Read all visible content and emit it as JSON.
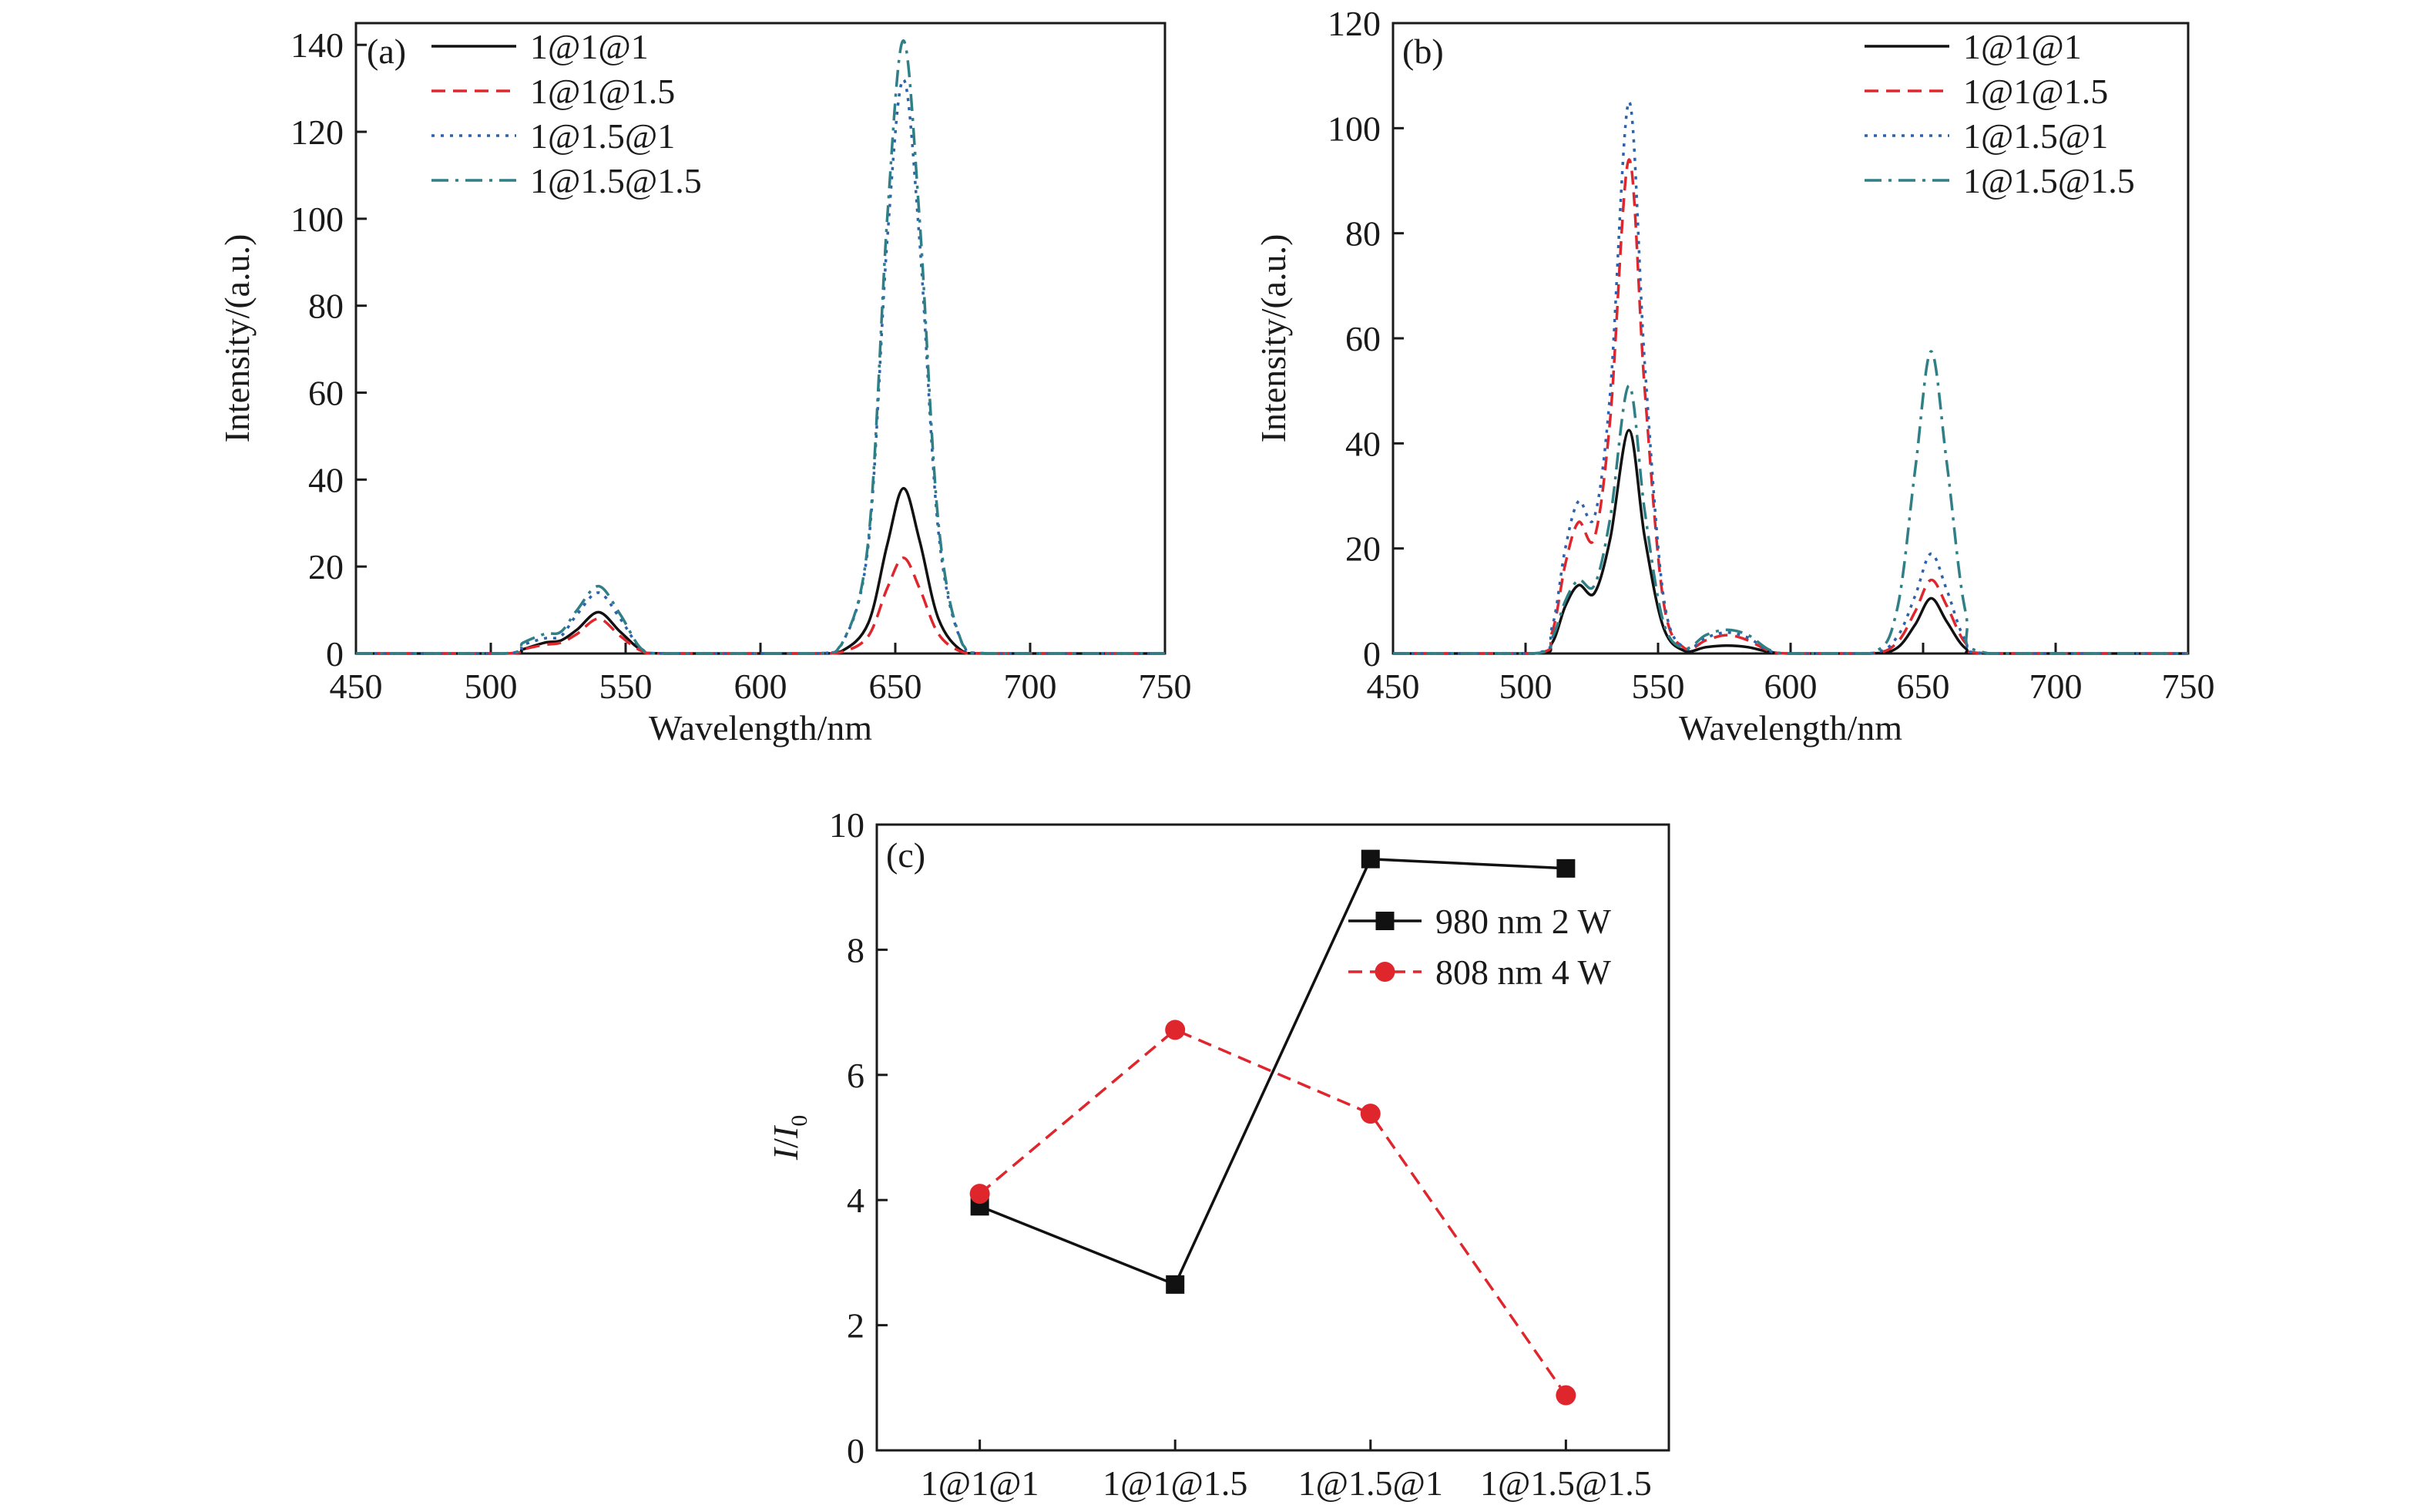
{
  "colors": {
    "series_black": "#111111",
    "series_red": "#e0262d",
    "series_blue": "#2a62ad",
    "series_teal": "#2f7f86"
  },
  "chart_data": [
    {
      "panel": "(a)",
      "type": "line",
      "xlabel": "Wavelength/nm",
      "ylabel": "Intensity/(a.u.)",
      "xlim": [
        450,
        750
      ],
      "ylim": [
        0,
        145
      ],
      "xticks": [
        450,
        500,
        550,
        600,
        650,
        700,
        750
      ],
      "yticks": [
        0,
        20,
        40,
        60,
        80,
        100,
        120,
        140
      ],
      "grid": false,
      "legend_position": "top-left",
      "series": [
        {
          "name": "1@1@1",
          "color": "#111111",
          "dash": "solid",
          "x": [
            450,
            505,
            512,
            520,
            526,
            532,
            540,
            548,
            556,
            565,
            620,
            630,
            640,
            647,
            653,
            659,
            666,
            675,
            685,
            750
          ],
          "y": [
            0,
            0,
            1,
            2.5,
            3,
            5.5,
            9.5,
            5,
            0.8,
            0,
            0,
            0.5,
            7,
            25,
            38,
            26,
            8,
            0.5,
            0,
            0
          ]
        },
        {
          "name": "1@1@1.5",
          "color": "#e0262d",
          "dash": "dashed",
          "x": [
            450,
            505,
            512,
            520,
            526,
            532,
            540,
            548,
            556,
            565,
            620,
            630,
            640,
            647,
            653,
            659,
            666,
            675,
            685,
            750
          ],
          "y": [
            0,
            0,
            1,
            2,
            2.5,
            4.5,
            8,
            4,
            0.6,
            0,
            0,
            0.3,
            4,
            15,
            22,
            15,
            4.5,
            0.3,
            0,
            0
          ]
        },
        {
          "name": "1@1.5@1",
          "color": "#2a62ad",
          "dash": "dotted",
          "x": [
            450,
            505,
            512,
            520,
            526,
            532,
            540,
            548,
            556,
            565,
            620,
            630,
            640,
            647,
            653,
            659,
            666,
            675,
            685,
            750
          ],
          "y": [
            0,
            0,
            2,
            3.5,
            4,
            9,
            14,
            8,
            1,
            0,
            0,
            2,
            25,
            95,
            132,
            95,
            28,
            2,
            0,
            0
          ]
        },
        {
          "name": "1@1.5@1.5",
          "color": "#2f7f86",
          "dash": "dashdot",
          "x": [
            450,
            505,
            512,
            520,
            526,
            532,
            540,
            548,
            556,
            565,
            620,
            630,
            640,
            647,
            653,
            659,
            666,
            675,
            685,
            750
          ],
          "y": [
            0,
            0,
            2.5,
            4.5,
            5,
            10,
            15.5,
            9,
            1,
            0,
            0,
            2,
            26,
            100,
            141,
            100,
            30,
            2,
            0,
            0
          ]
        }
      ]
    },
    {
      "panel": "(b)",
      "type": "line",
      "xlabel": "Wavelength/nm",
      "ylabel": "Intensity/(a.u.)",
      "xlim": [
        450,
        750
      ],
      "ylim": [
        0,
        120
      ],
      "xticks": [
        450,
        500,
        550,
        600,
        650,
        700,
        750
      ],
      "yticks": [
        0,
        20,
        40,
        60,
        80,
        100,
        120
      ],
      "grid": false,
      "legend_position": "top-right",
      "series": [
        {
          "name": "1@1@1",
          "color": "#111111",
          "dash": "solid",
          "x": [
            450,
            503,
            510,
            515,
            520,
            526,
            532,
            539,
            545,
            552,
            560,
            568,
            576,
            584,
            592,
            600,
            630,
            640,
            647,
            653,
            659,
            666,
            675,
            750
          ],
          "y": [
            0,
            0,
            2,
            9,
            13,
            11.5,
            22,
            42.5,
            22,
            5,
            0.5,
            1.2,
            1.5,
            1.2,
            0.3,
            0,
            0,
            1,
            5.5,
            10.5,
            6,
            1,
            0,
            0
          ]
        },
        {
          "name": "1@1@1.5",
          "color": "#e0262d",
          "dash": "dashed",
          "x": [
            450,
            503,
            510,
            515,
            520,
            526,
            532,
            539,
            545,
            552,
            560,
            568,
            576,
            584,
            592,
            600,
            630,
            640,
            647,
            653,
            659,
            666,
            675,
            750
          ],
          "y": [
            0,
            0,
            4,
            17,
            25,
            22,
            45,
            94,
            50,
            10,
            1,
            2.5,
            3.5,
            2.5,
            0.5,
            0,
            0,
            2,
            8,
            14,
            9,
            2,
            0,
            0
          ]
        },
        {
          "name": "1@1.5@1",
          "color": "#2a62ad",
          "dash": "dotted",
          "x": [
            450,
            503,
            510,
            515,
            520,
            526,
            532,
            539,
            545,
            552,
            560,
            568,
            576,
            584,
            592,
            600,
            630,
            640,
            647,
            653,
            659,
            666,
            675,
            750
          ],
          "y": [
            0,
            0,
            5,
            20,
            29,
            26,
            50,
            105,
            55,
            11,
            1,
            3,
            4,
            3,
            0.5,
            0,
            0,
            3,
            11,
            19,
            12,
            2.5,
            0,
            0
          ]
        },
        {
          "name": "1@1.5@1.5",
          "color": "#2f7f86",
          "dash": "dashdot",
          "x": [
            450,
            503,
            510,
            515,
            520,
            526,
            532,
            539,
            545,
            552,
            560,
            568,
            576,
            584,
            592,
            600,
            630,
            640,
            647,
            653,
            659,
            666,
            675,
            750
          ],
          "y": [
            0,
            0,
            3,
            10,
            14,
            13,
            26,
            51,
            27,
            6,
            1,
            3.5,
            4.5,
            3.5,
            0.7,
            0,
            0,
            8,
            35,
            57.5,
            36,
            8,
            0,
            0
          ]
        }
      ]
    },
    {
      "panel": "(c)",
      "type": "line",
      "xlabel": "",
      "ylabel_main": "I",
      "ylabel_sep": "/",
      "ylabel_sub_base": "I",
      "ylabel_sub": "0",
      "categories": [
        "1@1@1",
        "1@1@1.5",
        "1@1.5@1",
        "1@1.5@1.5"
      ],
      "ylim": [
        0,
        10
      ],
      "yticks": [
        0,
        2,
        4,
        6,
        8,
        10
      ],
      "grid": false,
      "legend_position": "right",
      "series": [
        {
          "name": "980 nm 2 W",
          "color": "#111111",
          "dash": "solid",
          "marker": "square",
          "values": [
            3.9,
            2.65,
            9.45,
            9.3
          ]
        },
        {
          "name": "808 nm 4 W",
          "color": "#e0262d",
          "dash": "dashed",
          "marker": "circle",
          "values": [
            4.1,
            6.72,
            5.38,
            0.88
          ]
        }
      ]
    }
  ]
}
